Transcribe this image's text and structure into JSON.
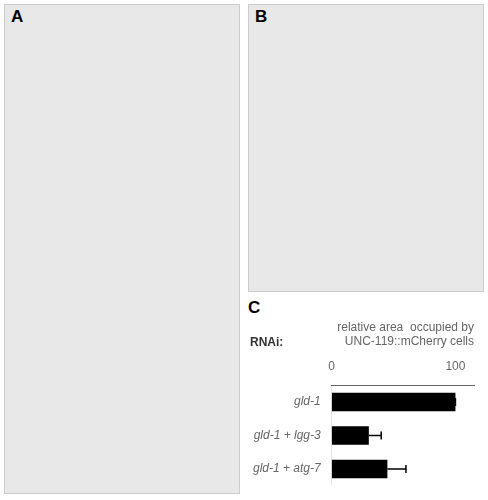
{
  "chart_data": {
    "type": "bar",
    "orientation": "horizontal",
    "title": [
      "relative area  occupied by",
      "UNC-119::mCherry cells"
    ],
    "annotations": [
      "A",
      "B",
      "C",
      "RNAi:"
    ],
    "categories": [
      "gld-1",
      "gld-1 + lgg-3",
      "gld-1 + atg-7"
    ],
    "values": [
      100,
      30,
      45
    ],
    "errors": [
      0,
      10,
      15
    ],
    "color": "#000000",
    "xlim": [
      0,
      115
    ],
    "xticks": [
      0,
      100
    ],
    "grid": false
  }
}
